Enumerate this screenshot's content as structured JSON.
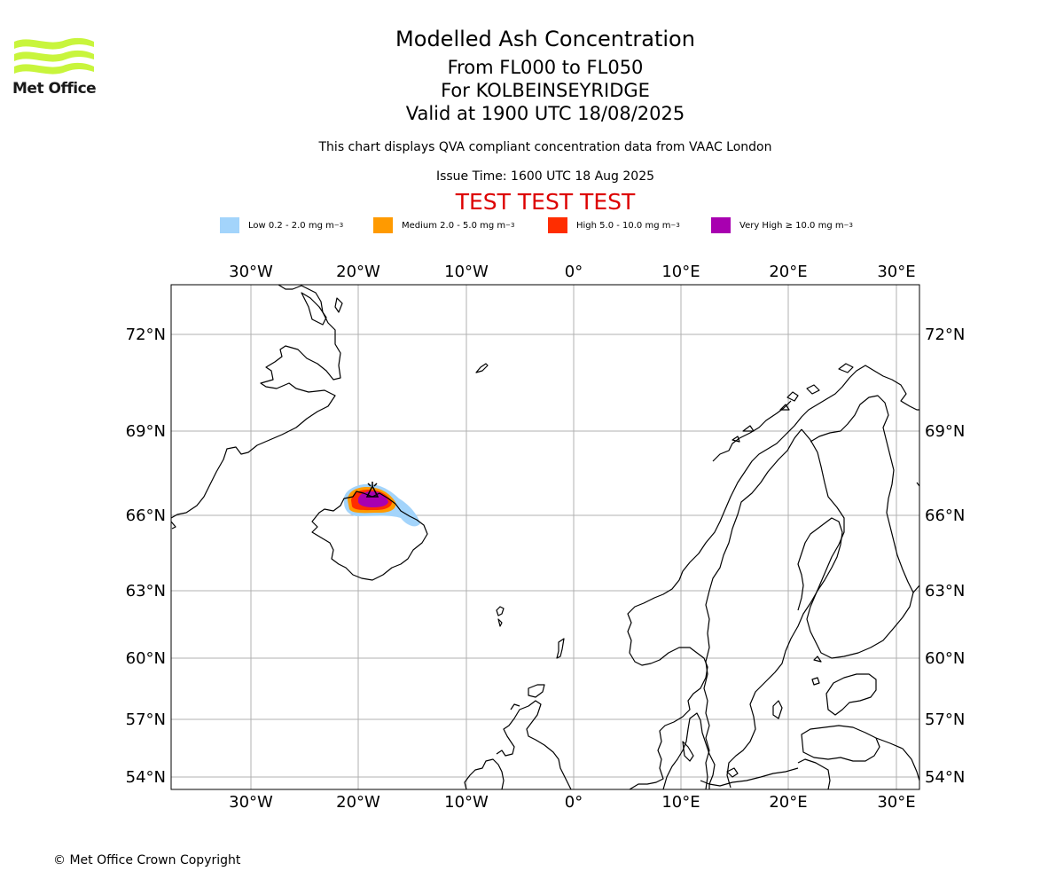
{
  "header": {
    "logo_text": "Met Office",
    "title": "Modelled Ash Concentration",
    "flight_levels": "From FL000 to FL050",
    "volcano": "For KOLBEINSEYRIDGE",
    "valid_time": "Valid at 1900 UTC 18/08/2025",
    "description": "This chart displays QVA compliant concentration data from VAAC London",
    "issue_time": "Issue Time: 1600 UTC 18 Aug 2025",
    "test_banner": "TEST TEST TEST",
    "test_banner_color": "#dd0000"
  },
  "legend": [
    {
      "label": "Low 0.2 - 2.0 mg m",
      "sup": "−3",
      "color": "#a3d4fb"
    },
    {
      "label": "Medium 2.0 - 5.0 mg m",
      "sup": "−3",
      "color": "#ff9a00"
    },
    {
      "label": "High 5.0 - 10.0 mg m",
      "sup": "−3",
      "color": "#ff2d00"
    },
    {
      "label": "Very High ≥ 10.0 mg m",
      "sup": "−3",
      "color": "#a800b0"
    }
  ],
  "map": {
    "lon_ticks": [
      "30°W",
      "20°W",
      "10°W",
      "0°",
      "10°E",
      "20°E",
      "30°E"
    ],
    "lat_ticks": [
      "72°N",
      "69°N",
      "66°N",
      "63°N",
      "60°N",
      "57°N",
      "54°N"
    ],
    "coastline_color": "#000000",
    "grid_color": "#b0b0b0"
  },
  "footer": {
    "copyright": "© Met Office Crown Copyright"
  }
}
